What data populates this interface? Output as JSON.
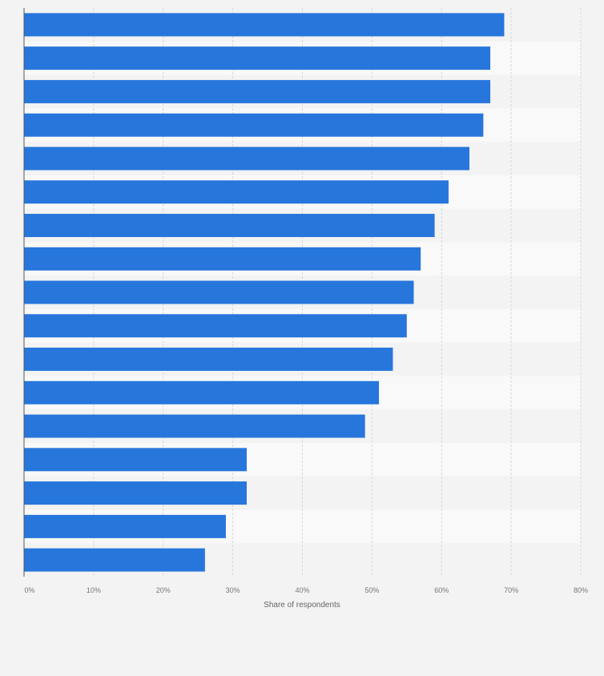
{
  "chart_data": {
    "type": "bar",
    "orientation": "horizontal",
    "title": "",
    "xlabel": "Share of respondents",
    "ylabel": "",
    "xlim": [
      0,
      80
    ],
    "x_ticks": [
      "0%",
      "10%",
      "20%",
      "30%",
      "40%",
      "50%",
      "60%",
      "70%",
      "80%"
    ],
    "grid": true,
    "values": [
      69,
      67,
      67,
      66,
      64,
      61,
      59,
      57,
      56,
      55,
      53,
      51,
      49,
      32,
      32,
      29,
      26
    ],
    "bar_color": "#2776dc"
  }
}
